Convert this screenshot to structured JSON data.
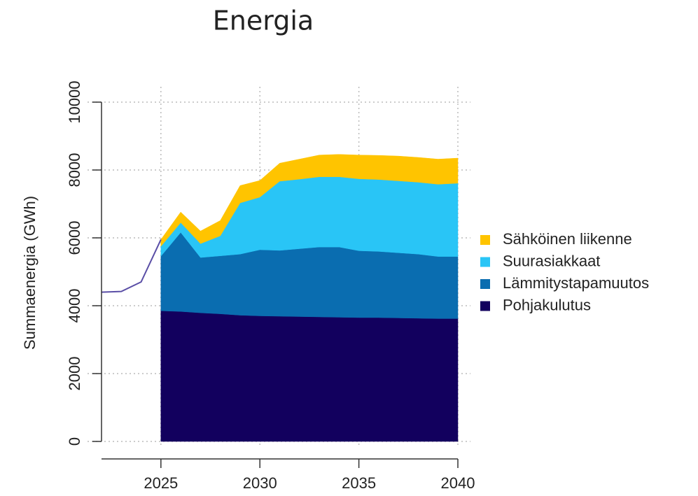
{
  "chart_data": {
    "type": "stacked_area",
    "title": "Energia",
    "y_label": "Summaenergia (GWh)",
    "x": [
      2025,
      2026,
      2027,
      2028,
      2029,
      2030,
      2031,
      2032,
      2033,
      2034,
      2035,
      2036,
      2037,
      2038,
      2039,
      2040
    ],
    "series": [
      {
        "name": "Pohjakulutus",
        "color": "#12005e",
        "values": [
          3850,
          3830,
          3790,
          3760,
          3720,
          3700,
          3690,
          3680,
          3670,
          3660,
          3650,
          3650,
          3640,
          3630,
          3620,
          3620
        ]
      },
      {
        "name": "Lämmitystapamuutos",
        "color": "#0a6db0",
        "values": [
          1610,
          2330,
          1630,
          1710,
          1800,
          1950,
          1940,
          2000,
          2060,
          2070,
          1970,
          1950,
          1920,
          1890,
          1830,
          1830
        ]
      },
      {
        "name": "Suurasiakkaat",
        "color": "#29c5f6",
        "values": [
          290,
          290,
          410,
          590,
          1510,
          1550,
          2040,
          2050,
          2070,
          2070,
          2120,
          2120,
          2120,
          2120,
          2130,
          2160
        ]
      },
      {
        "name": "Sähköinen liikenne",
        "color": "#ffc400",
        "values": [
          200,
          310,
          370,
          450,
          510,
          490,
          530,
          590,
          640,
          660,
          700,
          710,
          730,
          730,
          740,
          740
        ]
      }
    ],
    "history": {
      "color": "#5a4ea6",
      "x": [
        2022,
        2023,
        2024,
        2025
      ],
      "values": [
        4400,
        4420,
        4700,
        5950
      ]
    },
    "xlim": [
      2022,
      2040
    ],
    "ylim": [
      0,
      10000
    ],
    "xticks": [
      2025,
      2030,
      2035,
      2040
    ],
    "yticks": [
      0,
      2000,
      4000,
      6000,
      8000,
      10000
    ],
    "grid": true,
    "legend": "right"
  }
}
